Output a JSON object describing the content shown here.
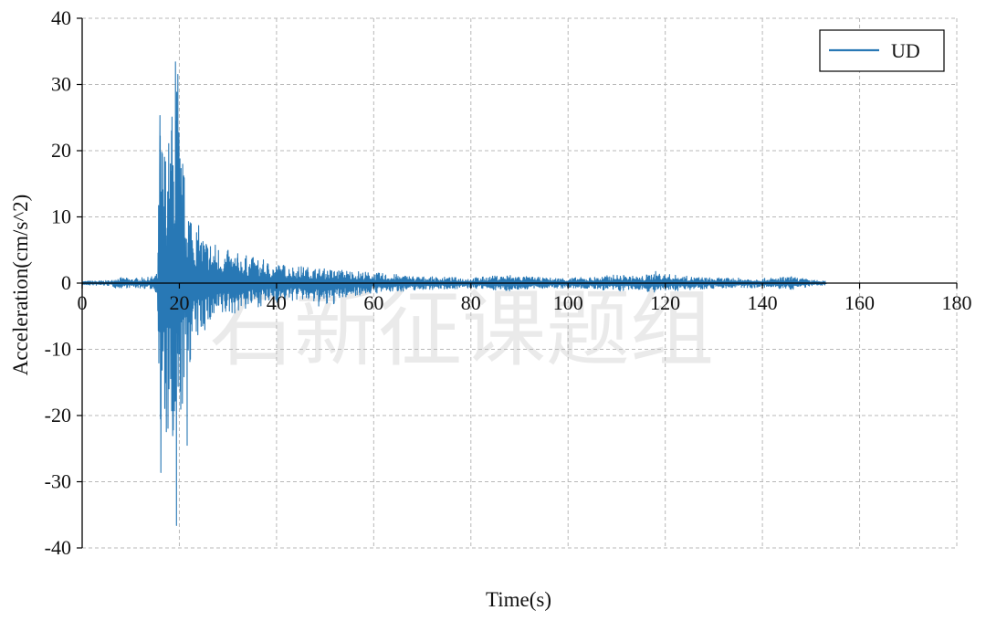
{
  "chart_data": {
    "type": "line",
    "title": "",
    "xlabel": "Time(s)",
    "ylabel": "Acceleration(cm/s^2)",
    "xlim": [
      0,
      180
    ],
    "ylim": [
      -40,
      40
    ],
    "x_ticks": [
      0,
      20,
      40,
      60,
      80,
      100,
      120,
      140,
      160,
      180
    ],
    "y_ticks": [
      40,
      30,
      20,
      10,
      0,
      -10,
      -20,
      -30,
      -40
    ],
    "grid": true,
    "grid_style": "dashed",
    "legend": {
      "placement": "top-right",
      "entries": [
        "UD"
      ]
    },
    "watermark": "石新征课题组",
    "colors": {
      "series": "#2878b5",
      "grid": "#b8b8b8",
      "axis": "#000000",
      "zero_line": "#000000"
    },
    "series": [
      {
        "name": "UD",
        "envelope": {
          "t": [
            0,
            6,
            7,
            10,
            14,
            15.5,
            16,
            17,
            18,
            19,
            19.5,
            20,
            21,
            22,
            23,
            25,
            28,
            30,
            35,
            40,
            45,
            50,
            55,
            60,
            70,
            80,
            88,
            90,
            95,
            100,
            105,
            110,
            115,
            118,
            120,
            125,
            130,
            140,
            146,
            150,
            153
          ],
          "upper": [
            0.3,
            0.4,
            0.9,
            0.7,
            0.9,
            1.5,
            25.5,
            22.0,
            23.0,
            31.0,
            33.5,
            24.0,
            17.0,
            14.0,
            10.0,
            7.5,
            6.0,
            5.0,
            4.0,
            3.0,
            2.6,
            2.2,
            2.0,
            1.6,
            1.0,
            0.8,
            1.3,
            1.1,
            0.8,
            0.8,
            0.9,
            1.3,
            1.0,
            1.8,
            1.4,
            1.0,
            0.8,
            0.7,
            1.0,
            0.5,
            0.3
          ],
          "lower": [
            -0.3,
            -0.4,
            -0.8,
            -0.7,
            -0.9,
            -1.5,
            -28.5,
            -25.0,
            -26.0,
            -36.5,
            -30.0,
            -24.0,
            -17.0,
            -13.0,
            -10.0,
            -7.5,
            -6.0,
            -5.0,
            -3.8,
            -3.0,
            -2.6,
            -4.0,
            -2.0,
            -1.6,
            -1.0,
            -0.8,
            -1.2,
            -1.0,
            -0.8,
            -0.8,
            -0.9,
            -1.3,
            -1.0,
            -1.6,
            -1.3,
            -1.0,
            -0.8,
            -0.7,
            -1.0,
            -0.5,
            -0.3
          ]
        },
        "peaks": [
          {
            "t": 16.0,
            "a": 25.3
          },
          {
            "t": 16.2,
            "a": -28.6
          },
          {
            "t": 18.4,
            "a": 23.0
          },
          {
            "t": 19.2,
            "a": 33.4
          },
          {
            "t": 19.4,
            "a": -36.6
          },
          {
            "t": 19.7,
            "a": 31.5
          },
          {
            "t": 21.6,
            "a": -24.5
          }
        ]
      }
    ]
  }
}
